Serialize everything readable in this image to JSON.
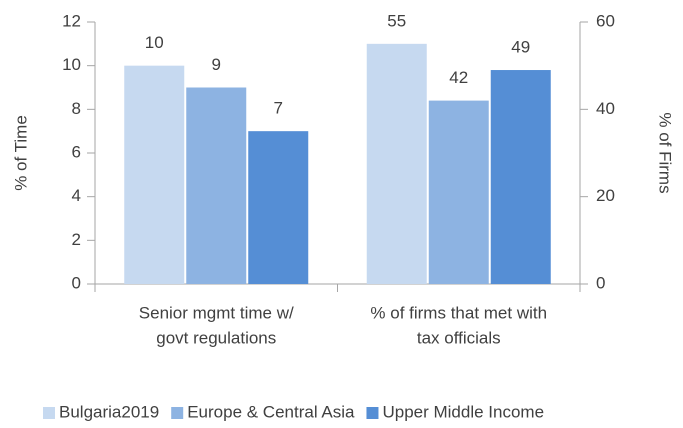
{
  "chart_data": {
    "type": "bar",
    "categories": [
      [
        "Senior mgmt time w/",
        "govt regulations"
      ],
      [
        "% of firms that met with",
        "tax officials"
      ]
    ],
    "category_axes": [
      "y",
      "y2"
    ],
    "series": [
      {
        "name": "Bulgaria2019",
        "color": "#c6d9f0",
        "values": [
          10,
          55
        ]
      },
      {
        "name": "Europe & Central Asia",
        "color": "#8db3e2",
        "values": [
          9,
          42
        ]
      },
      {
        "name": "Upper Middle Income",
        "color": "#558ed5",
        "values": [
          7,
          49
        ]
      }
    ],
    "ylabel": "% of Time",
    "ylim": [
      0,
      12
    ],
    "yticks": [
      0,
      2,
      4,
      6,
      8,
      10,
      12
    ],
    "y2label": "% of Firms",
    "y2lim": [
      0,
      60
    ],
    "y2ticks": [
      0,
      20,
      40,
      60
    ],
    "legend": "bottom"
  }
}
